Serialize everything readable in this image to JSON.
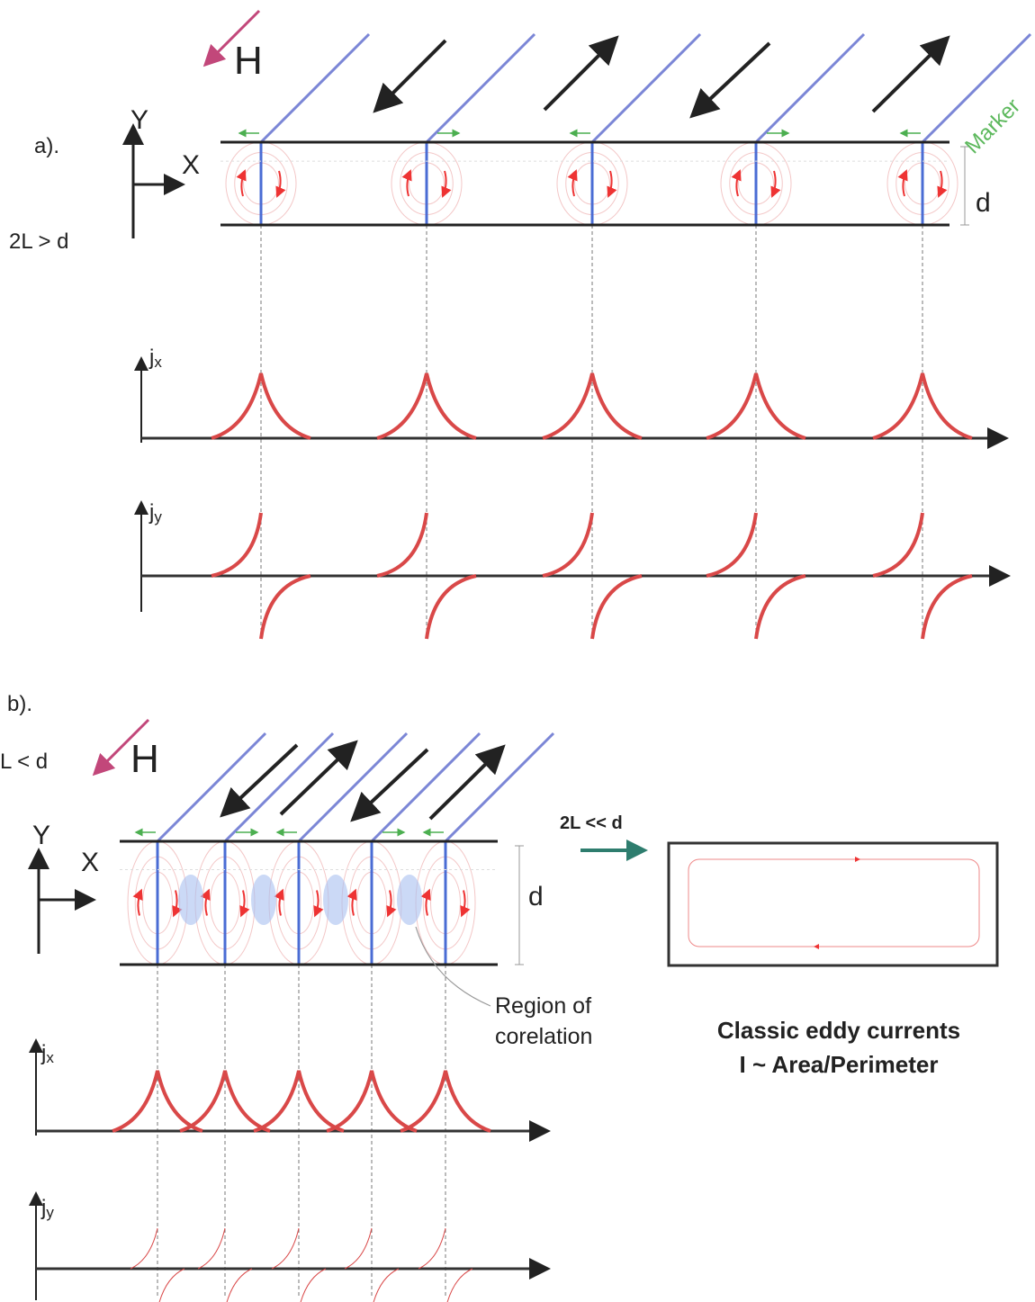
{
  "panel_a": {
    "label": "a).",
    "field": "H",
    "axis_y": "Y",
    "axis_x": "X",
    "condition": "2L > d",
    "marker": "Marker",
    "thickness": "d",
    "jx": {
      "base": "j",
      "sub": "x"
    },
    "jy": {
      "base": "j",
      "sub": "y"
    }
  },
  "panel_b": {
    "label": "b).",
    "condition": "L < d",
    "field": "H",
    "axis_y": "Y",
    "axis_x": "X",
    "thickness": "d",
    "region": [
      "Region of",
      "corelation"
    ],
    "arrow_label": "2L << d",
    "classic": [
      "Classic eddy currents",
      "I ~ Area/Perimeter"
    ],
    "jx": {
      "base": "j",
      "sub": "x"
    },
    "jy": {
      "base": "j",
      "sub": "y"
    }
  }
}
